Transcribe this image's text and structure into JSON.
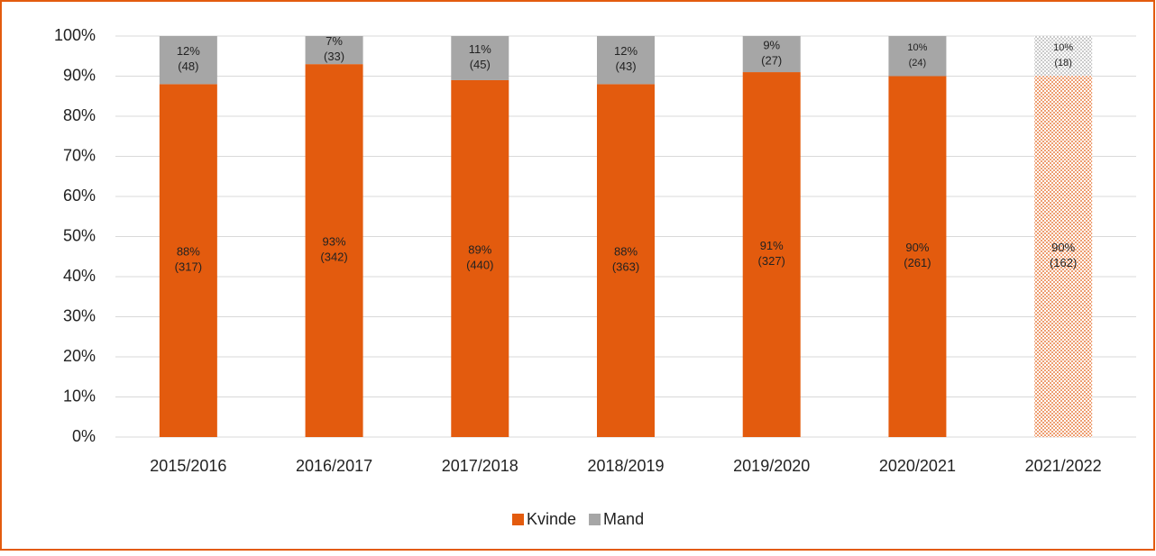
{
  "chart_data": {
    "type": "stacked_bar",
    "categories": [
      "2015/2016",
      "2016/2017",
      "2017/2018",
      "2018/2019",
      "2019/2020",
      "2020/2021",
      "2021/2022"
    ],
    "series": [
      {
        "name": "Kvinde",
        "color": "#e35b0e",
        "values": [
          88,
          93,
          89,
          88,
          91,
          90,
          90
        ],
        "value_labels": [
          "88%",
          "93%",
          "89%",
          "88%",
          "91%",
          "90%",
          "90%"
        ],
        "count_labels": [
          "(317)",
          "(342)",
          "(440)",
          "(363)",
          "(327)",
          "(261)",
          "(162)"
        ]
      },
      {
        "name": "Mand",
        "color": "#a6a6a6",
        "values": [
          12,
          7,
          11,
          12,
          9,
          10,
          10
        ],
        "value_labels": [
          "12%",
          "7%",
          "11%",
          "12%",
          "9%",
          "10%",
          "10%"
        ],
        "count_labels": [
          "(48)",
          "(33)",
          "(45)",
          "(43)",
          "(27)",
          "(24)",
          "(18)"
        ]
      }
    ],
    "dotted_index": 6,
    "ylim": [
      0,
      100
    ],
    "yticks": [
      {
        "value": 0,
        "label": "0%"
      },
      {
        "value": 10,
        "label": "10%"
      },
      {
        "value": 20,
        "label": "20%"
      },
      {
        "value": 30,
        "label": "30%"
      },
      {
        "value": 40,
        "label": "40%"
      },
      {
        "value": 50,
        "label": "50%"
      },
      {
        "value": 60,
        "label": "60%"
      },
      {
        "value": 70,
        "label": "70%"
      },
      {
        "value": 80,
        "label": "80%"
      },
      {
        "value": 90,
        "label": "90%"
      },
      {
        "value": 100,
        "label": "100%"
      }
    ],
    "grid": true,
    "legend": "bottom"
  }
}
